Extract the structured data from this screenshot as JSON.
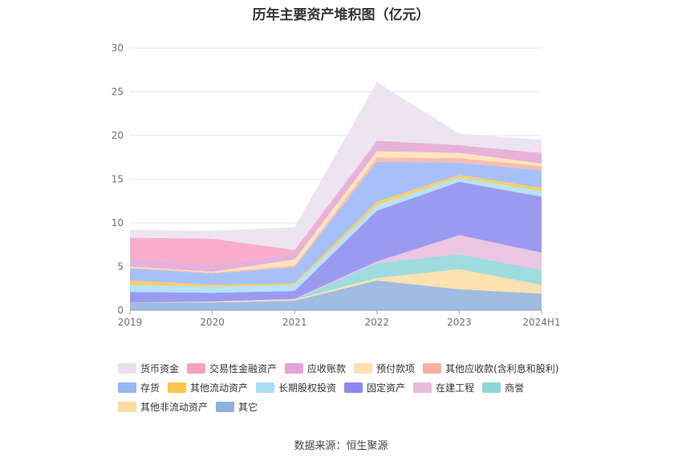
{
  "chart_data": {
    "type": "area",
    "title": "历年主要资产堆积图（亿元）",
    "source": "数据来源：恒生聚源",
    "stacked": true,
    "categories": [
      "2019",
      "2020",
      "2021",
      "2022",
      "2023",
      "2024H1"
    ],
    "ylim": [
      0,
      30
    ],
    "yticks": [
      0,
      5,
      10,
      15,
      20,
      25,
      30
    ],
    "grid": true,
    "legend_position": "bottom",
    "series": [
      {
        "name": "其它",
        "color": "#8eb0dc",
        "values": [
          0.9,
          0.9,
          1.1,
          3.4,
          2.4,
          1.9
        ]
      },
      {
        "name": "其他非流动资产",
        "color": "#fddca0",
        "values": [
          0.0,
          0.1,
          0.1,
          0.3,
          2.3,
          1.0
        ]
      },
      {
        "name": "商誉",
        "color": "#8dd6d8",
        "values": [
          0.0,
          0.0,
          0.0,
          1.7,
          1.7,
          1.7
        ]
      },
      {
        "name": "在建工程",
        "color": "#e8bcdc",
        "values": [
          0.0,
          0.0,
          0.1,
          0.2,
          2.2,
          2.0
        ]
      },
      {
        "name": "固定资产",
        "color": "#8a88ee",
        "values": [
          1.2,
          1.0,
          0.9,
          5.8,
          6.1,
          6.4
        ]
      },
      {
        "name": "长期股权投资",
        "color": "#a8def7",
        "values": [
          0.8,
          0.7,
          0.7,
          0.6,
          0.5,
          0.6
        ]
      },
      {
        "name": "其他流动资产",
        "color": "#fcc54b",
        "values": [
          0.5,
          0.2,
          0.2,
          0.4,
          0.3,
          0.4
        ]
      },
      {
        "name": "存货",
        "color": "#97b6f8",
        "values": [
          1.4,
          1.3,
          1.8,
          4.6,
          1.4,
          2.0
        ]
      },
      {
        "name": "其他应收款(含利息和股利)",
        "color": "#f7b0a2",
        "values": [
          0.1,
          0.1,
          0.2,
          0.5,
          0.5,
          0.5
        ]
      },
      {
        "name": "预付款项",
        "color": "#fde0b0",
        "values": [
          0.1,
          0.1,
          0.7,
          0.7,
          0.6,
          0.3
        ]
      },
      {
        "name": "应收账款",
        "color": "#e3a3d4",
        "values": [
          0.9,
          0.8,
          0.7,
          1.2,
          0.9,
          1.2
        ]
      },
      {
        "name": "交易性金融资产",
        "color": "#f9a0c2",
        "values": [
          2.4,
          3.0,
          0.4,
          0.0,
          0.0,
          0.0
        ]
      },
      {
        "name": "货币资金",
        "color": "#eadff0",
        "values": [
          0.9,
          0.9,
          2.6,
          6.7,
          1.3,
          1.5
        ]
      }
    ],
    "legend": [
      [
        "货币资金",
        "交易性金融资产",
        "应收账款",
        "预付款项",
        "其他应收款(含利息和股利)"
      ],
      [
        "存货",
        "其他流动资产",
        "长期股权投资",
        "固定资产",
        "在建工程",
        "商誉"
      ],
      [
        "其他非流动资产",
        "其它"
      ]
    ]
  }
}
